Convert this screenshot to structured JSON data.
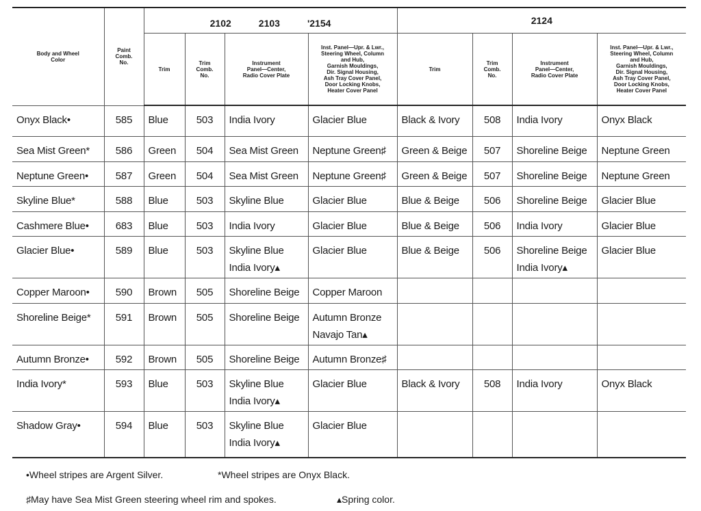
{
  "header": {
    "body_wheel_color": "Body and Wheel\nColor",
    "paint_comb_no": "Paint\nComb.\nNo.",
    "group1_models": [
      "2102",
      "2103",
      "'2154"
    ],
    "group2_model": "2124",
    "trim": "Trim",
    "trim_comb_no": "Trim\nComb.\nNo.",
    "instrument_panel_center": "Instrument\nPanel—Center,\nRadio Cover Plate",
    "inst_panel_upper_lower": "Inst. Panel—Upr. & Lwr.,\nSteering Wheel, Column\nand Hub,\nGarnish Mouldings,\nDir. Signal Housing,\nAsh Tray Cover Panel,\nDoor Locking Knobs,\nHeater Cover Panel"
  },
  "rows": [
    [
      "Onyx Black•",
      "585",
      "Blue",
      "503",
      "India Ivory",
      "Glacier Blue",
      "Black & Ivory",
      "508",
      "India Ivory",
      "Onyx Black"
    ],
    [
      "Sea Mist Green*",
      "586",
      "Green",
      "504",
      "Sea Mist Green",
      "Neptune Green♯",
      "Green & Beige",
      "507",
      "Shoreline Beige",
      "Neptune Green"
    ],
    [
      "Neptune Green•",
      "587",
      "Green",
      "504",
      "Sea Mist Green",
      "Neptune Green♯",
      "Green & Beige",
      "507",
      "Shoreline Beige",
      "Neptune Green"
    ],
    [
      "Skyline Blue*",
      "588",
      "Blue",
      "503",
      "Skyline Blue",
      "Glacier Blue",
      "Blue & Beige",
      "506",
      "Shoreline Beige",
      "Glacier Blue"
    ],
    [
      "Cashmere Blue•",
      "683",
      "Blue",
      "503",
      "India Ivory",
      "Glacier Blue",
      "Blue & Beige",
      "506",
      "India Ivory",
      "Glacier Blue"
    ],
    [
      "Glacier Blue•",
      "589",
      "Blue",
      "503",
      "Skyline Blue\nIndia Ivory▴",
      "Glacier Blue",
      "Blue & Beige",
      "506",
      "Shoreline Beige\nIndia Ivory▴",
      "Glacier Blue"
    ],
    [
      "Copper Maroon•",
      "590",
      "Brown",
      "505",
      "Shoreline Beige",
      "Copper Maroon",
      "",
      "",
      "",
      ""
    ],
    [
      "Shoreline Beige*",
      "591",
      "Brown",
      "505",
      "Shoreline Beige",
      "Autumn Bronze\nNavajo Tan▴",
      "",
      "",
      "",
      ""
    ],
    [
      "Autumn Bronze•",
      "592",
      "Brown",
      "505",
      "Shoreline Beige",
      "Autumn Bronze♯",
      "",
      "",
      "",
      ""
    ],
    [
      "India Ivory*",
      "593",
      "Blue",
      "503",
      "Skyline Blue\nIndia Ivory▴",
      "Glacier Blue",
      "Black & Ivory",
      "508",
      "India Ivory",
      "Onyx Black"
    ],
    [
      "Shadow Gray•",
      "594",
      "Blue",
      "503",
      "Skyline Blue\nIndia Ivory▴",
      "Glacier Blue",
      "",
      "",
      "",
      ""
    ]
  ],
  "footnotes": {
    "bullet": "•Wheel stripes are Argent Silver.",
    "asterisk": "*Wheel stripes are Onyx Black.",
    "sharp": "♯May have Sea Mist Green steering wheel rim and spokes.",
    "triangle": "▴Spring color."
  }
}
